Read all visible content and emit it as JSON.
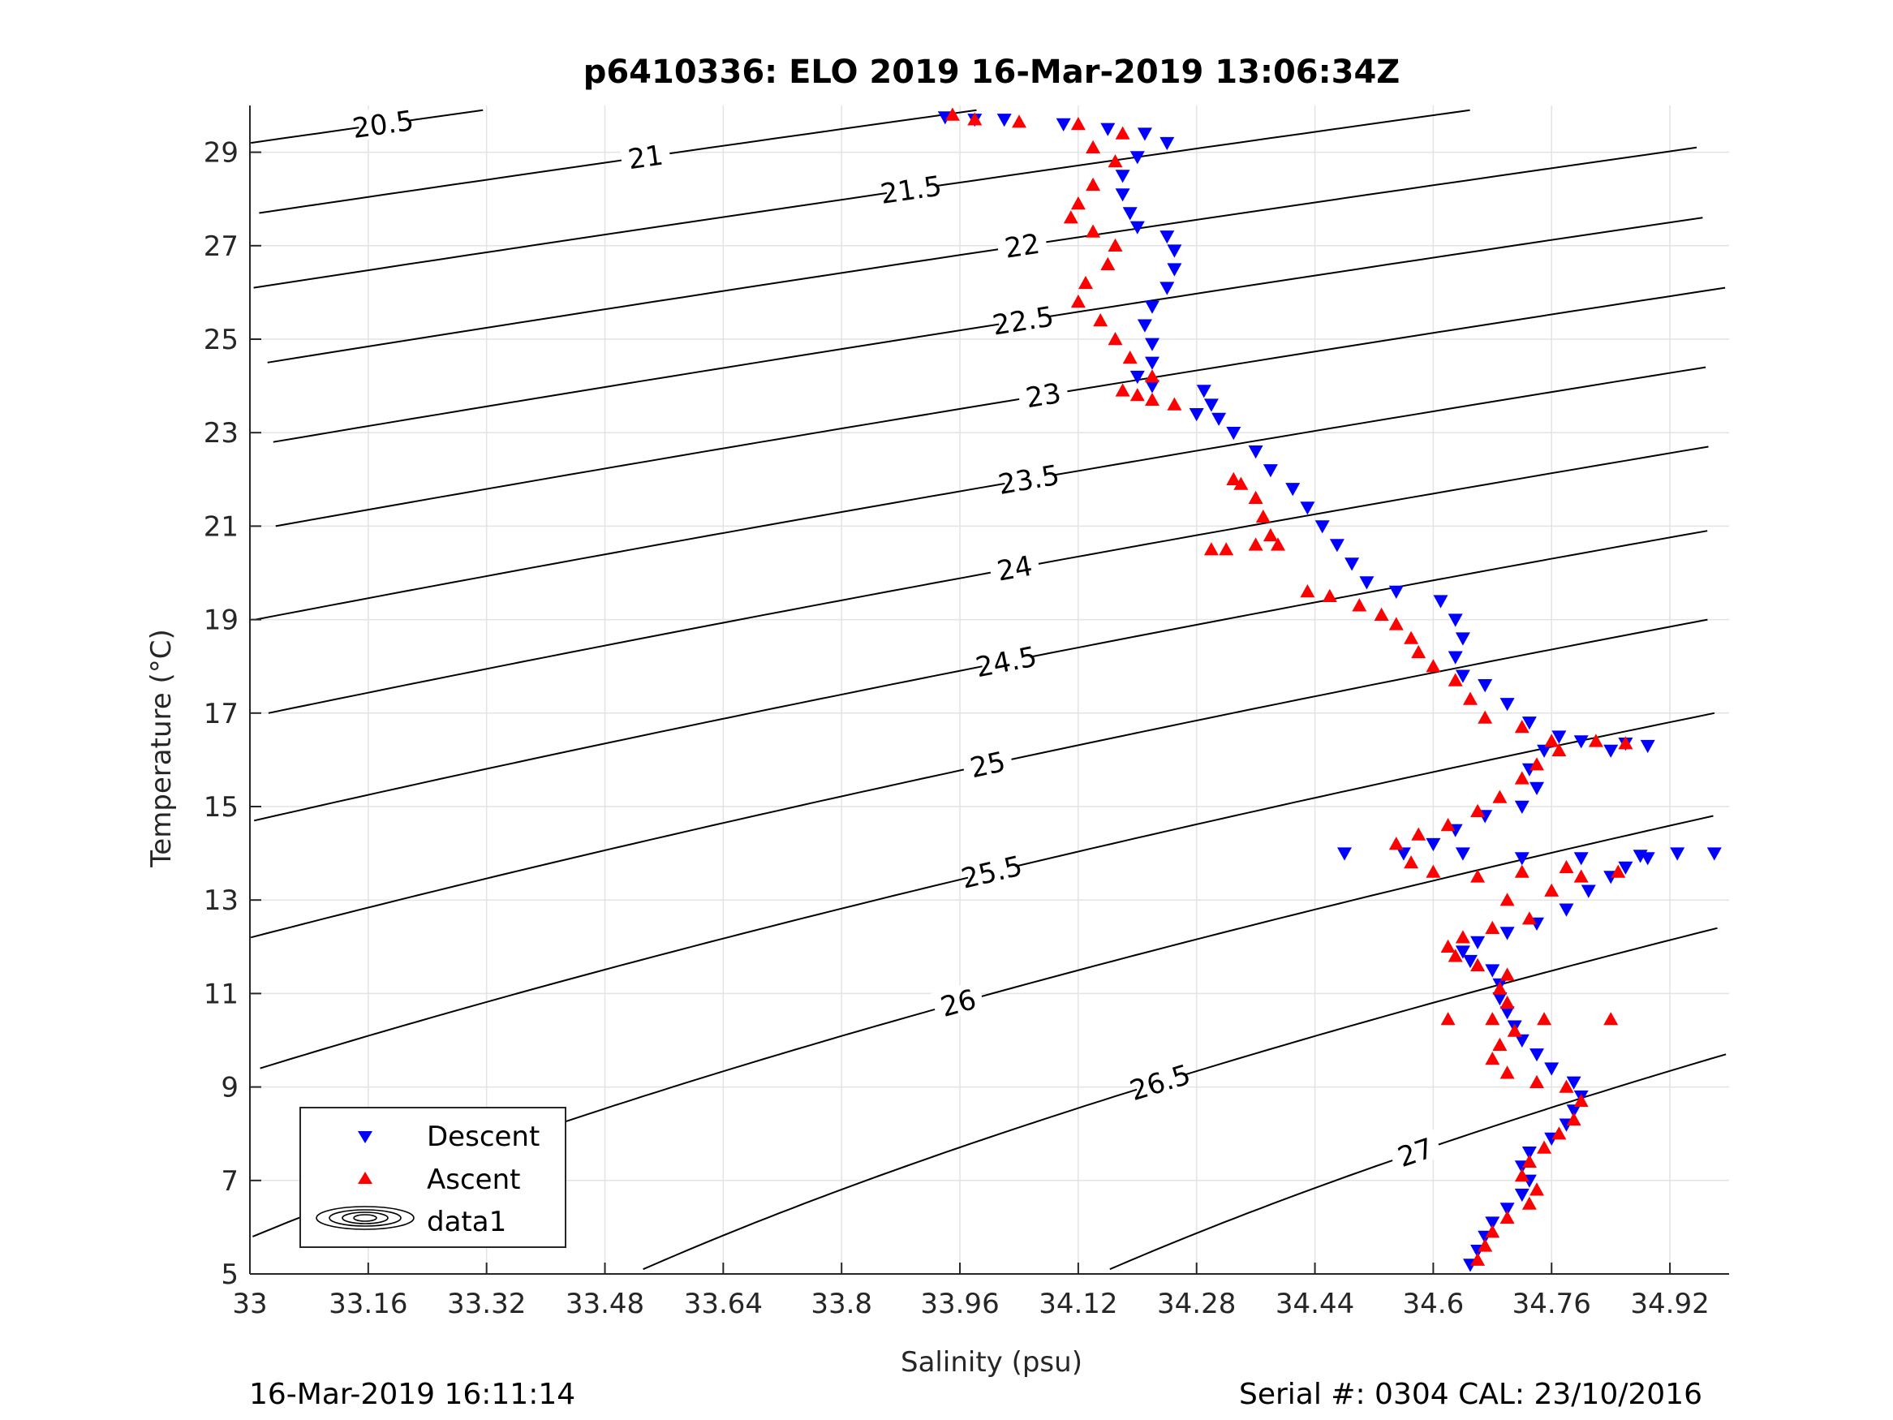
{
  "chart_data": {
    "type": "scatter",
    "title": "p6410336: ELO 2019 16-Mar-2019 13:06:34Z",
    "xlabel": "Salinity (psu)",
    "ylabel": "Temperature (°C)",
    "xlim": [
      33.0,
      35.0
    ],
    "ylim": [
      5.0,
      30.0
    ],
    "xticks": [
      "33",
      "33.16",
      "33.32",
      "33.48",
      "33.64",
      "33.8",
      "33.96",
      "34.12",
      "34.28",
      "34.44",
      "34.6",
      "34.76",
      "34.92"
    ],
    "yticks": [
      "5",
      "7",
      "9",
      "11",
      "13",
      "15",
      "17",
      "19",
      "21",
      "23",
      "25",
      "27",
      "29"
    ],
    "grid": true,
    "legend_position": "bottom-left",
    "legend": [
      "Descent",
      "Ascent",
      "data1"
    ],
    "contour_levels": [
      "20.5",
      "21",
      "21.5",
      "22",
      "22.5",
      "23",
      "23.5",
      "24",
      "24.5",
      "25",
      "25.5",
      "26",
      "26.5",
      "27"
    ],
    "series": [
      {
        "name": "Descent",
        "color": "#0000ff",
        "marker": "triangle-down",
        "points": [
          [
            34.65,
            5.2
          ],
          [
            34.66,
            5.5
          ],
          [
            34.67,
            5.8
          ],
          [
            34.68,
            6.1
          ],
          [
            34.7,
            6.4
          ],
          [
            34.72,
            6.7
          ],
          [
            34.73,
            7.0
          ],
          [
            34.72,
            7.3
          ],
          [
            34.73,
            7.6
          ],
          [
            34.76,
            7.9
          ],
          [
            34.78,
            8.2
          ],
          [
            34.79,
            8.5
          ],
          [
            34.8,
            8.8
          ],
          [
            34.79,
            9.1
          ],
          [
            34.76,
            9.4
          ],
          [
            34.74,
            9.7
          ],
          [
            34.72,
            10.0
          ],
          [
            34.71,
            10.3
          ],
          [
            34.7,
            10.6
          ],
          [
            34.69,
            10.9
          ],
          [
            34.69,
            11.2
          ],
          [
            34.68,
            11.5
          ],
          [
            34.65,
            11.7
          ],
          [
            34.64,
            11.9
          ],
          [
            34.66,
            12.1
          ],
          [
            34.7,
            12.3
          ],
          [
            34.74,
            12.5
          ],
          [
            34.78,
            12.8
          ],
          [
            34.81,
            13.2
          ],
          [
            34.84,
            13.5
          ],
          [
            34.86,
            13.7
          ],
          [
            34.89,
            13.9
          ],
          [
            34.93,
            14.0
          ],
          [
            34.98,
            14.0
          ],
          [
            34.88,
            13.95
          ],
          [
            34.8,
            13.9
          ],
          [
            34.72,
            13.9
          ],
          [
            34.64,
            14.0
          ],
          [
            34.56,
            14.0
          ],
          [
            34.48,
            14.0
          ],
          [
            34.6,
            14.2
          ],
          [
            34.63,
            14.5
          ],
          [
            34.67,
            14.8
          ],
          [
            34.72,
            15.0
          ],
          [
            34.74,
            15.4
          ],
          [
            34.73,
            15.8
          ],
          [
            34.75,
            16.2
          ],
          [
            34.8,
            16.4
          ],
          [
            34.86,
            16.35
          ],
          [
            34.89,
            16.3
          ],
          [
            34.84,
            16.2
          ],
          [
            34.77,
            16.5
          ],
          [
            34.73,
            16.8
          ],
          [
            34.7,
            17.2
          ],
          [
            34.67,
            17.6
          ],
          [
            34.64,
            17.8
          ],
          [
            34.63,
            18.2
          ],
          [
            34.64,
            18.6
          ],
          [
            34.63,
            19.0
          ],
          [
            34.61,
            19.4
          ],
          [
            34.55,
            19.6
          ],
          [
            34.51,
            19.8
          ],
          [
            34.49,
            20.2
          ],
          [
            34.47,
            20.6
          ],
          [
            34.45,
            21.0
          ],
          [
            34.43,
            21.4
          ],
          [
            34.41,
            21.8
          ],
          [
            34.38,
            22.2
          ],
          [
            34.36,
            22.6
          ],
          [
            34.33,
            23.0
          ],
          [
            34.31,
            23.3
          ],
          [
            34.28,
            23.4
          ],
          [
            34.3,
            23.6
          ],
          [
            34.29,
            23.9
          ],
          [
            34.22,
            24.0
          ],
          [
            34.2,
            24.2
          ],
          [
            34.22,
            24.5
          ],
          [
            34.22,
            24.9
          ],
          [
            34.21,
            25.3
          ],
          [
            34.22,
            25.7
          ],
          [
            34.24,
            26.1
          ],
          [
            34.25,
            26.5
          ],
          [
            34.25,
            26.9
          ],
          [
            34.24,
            27.2
          ],
          [
            34.2,
            27.4
          ],
          [
            34.19,
            27.7
          ],
          [
            34.18,
            28.1
          ],
          [
            34.18,
            28.5
          ],
          [
            34.2,
            28.9
          ],
          [
            34.24,
            29.2
          ],
          [
            34.21,
            29.4
          ],
          [
            34.16,
            29.5
          ],
          [
            34.1,
            29.6
          ],
          [
            34.02,
            29.7
          ],
          [
            33.98,
            29.7
          ],
          [
            33.94,
            29.75
          ]
        ]
      },
      {
        "name": "Ascent",
        "color": "#ff0000",
        "marker": "triangle-up",
        "points": [
          [
            34.66,
            5.3
          ],
          [
            34.67,
            5.6
          ],
          [
            34.68,
            5.9
          ],
          [
            34.7,
            6.2
          ],
          [
            34.73,
            6.5
          ],
          [
            34.74,
            6.8
          ],
          [
            34.72,
            7.1
          ],
          [
            34.73,
            7.4
          ],
          [
            34.75,
            7.7
          ],
          [
            34.77,
            8.0
          ],
          [
            34.79,
            8.3
          ],
          [
            34.8,
            8.7
          ],
          [
            34.78,
            9.0
          ],
          [
            34.74,
            9.1
          ],
          [
            34.7,
            9.3
          ],
          [
            34.68,
            9.6
          ],
          [
            34.69,
            9.9
          ],
          [
            34.71,
            10.2
          ],
          [
            34.68,
            10.45
          ],
          [
            34.62,
            10.45
          ],
          [
            34.75,
            10.45
          ],
          [
            34.84,
            10.45
          ],
          [
            34.7,
            10.8
          ],
          [
            34.69,
            11.1
          ],
          [
            34.7,
            11.4
          ],
          [
            34.66,
            11.6
          ],
          [
            34.63,
            11.8
          ],
          [
            34.62,
            12.0
          ],
          [
            34.64,
            12.2
          ],
          [
            34.68,
            12.4
          ],
          [
            34.73,
            12.6
          ],
          [
            34.7,
            13.0
          ],
          [
            34.76,
            13.2
          ],
          [
            34.8,
            13.5
          ],
          [
            34.85,
            13.6
          ],
          [
            34.78,
            13.7
          ],
          [
            34.72,
            13.6
          ],
          [
            34.66,
            13.5
          ],
          [
            34.6,
            13.6
          ],
          [
            34.57,
            13.8
          ],
          [
            34.55,
            14.2
          ],
          [
            34.58,
            14.4
          ],
          [
            34.62,
            14.6
          ],
          [
            34.66,
            14.9
          ],
          [
            34.69,
            15.2
          ],
          [
            34.72,
            15.6
          ],
          [
            34.74,
            15.9
          ],
          [
            34.77,
            16.2
          ],
          [
            34.82,
            16.4
          ],
          [
            34.86,
            16.35
          ],
          [
            34.76,
            16.4
          ],
          [
            34.72,
            16.7
          ],
          [
            34.67,
            16.9
          ],
          [
            34.65,
            17.3
          ],
          [
            34.63,
            17.7
          ],
          [
            34.6,
            18.0
          ],
          [
            34.58,
            18.3
          ],
          [
            34.57,
            18.6
          ],
          [
            34.55,
            18.9
          ],
          [
            34.53,
            19.1
          ],
          [
            34.5,
            19.3
          ],
          [
            34.46,
            19.5
          ],
          [
            34.43,
            19.6
          ],
          [
            34.39,
            20.6
          ],
          [
            34.36,
            20.6
          ],
          [
            34.32,
            20.5
          ],
          [
            34.3,
            20.5
          ],
          [
            34.38,
            20.8
          ],
          [
            34.37,
            21.2
          ],
          [
            34.36,
            21.6
          ],
          [
            34.34,
            21.9
          ],
          [
            34.33,
            22.0
          ],
          [
            34.25,
            23.6
          ],
          [
            34.22,
            23.7
          ],
          [
            34.2,
            23.8
          ],
          [
            34.18,
            23.9
          ],
          [
            34.22,
            24.2
          ],
          [
            34.19,
            24.6
          ],
          [
            34.17,
            25.0
          ],
          [
            34.15,
            25.4
          ],
          [
            34.12,
            25.8
          ],
          [
            34.13,
            26.2
          ],
          [
            34.16,
            26.6
          ],
          [
            34.17,
            27.0
          ],
          [
            34.14,
            27.3
          ],
          [
            34.11,
            27.6
          ],
          [
            34.12,
            27.9
          ],
          [
            34.14,
            28.3
          ],
          [
            34.17,
            28.8
          ],
          [
            34.14,
            29.1
          ],
          [
            34.18,
            29.4
          ],
          [
            34.12,
            29.6
          ],
          [
            34.04,
            29.65
          ],
          [
            33.98,
            29.7
          ],
          [
            33.95,
            29.8
          ]
        ]
      }
    ]
  },
  "footer": {
    "left": "16-Mar-2019 16:11:14",
    "right": "Serial #: 0304  CAL: 23/10/2016"
  }
}
